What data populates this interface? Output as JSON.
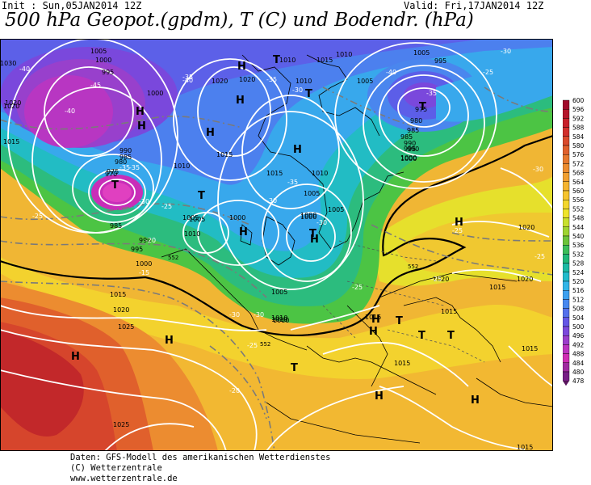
{
  "header": {
    "init": "Init : Sun,05JAN2014 12Z",
    "valid": "Valid: Fri,17JAN2014 12Z",
    "title": "500 hPa Geopot.(gpdm), T (C) und Bodendr. (hPa)"
  },
  "isobars": [
    {
      "v": "1030"
    },
    {
      "v": "1020"
    },
    {
      "v": "1005"
    },
    {
      "v": "1000"
    },
    {
      "v": "995"
    },
    {
      "v": "1000"
    },
    {
      "v": "1020"
    },
    {
      "v": "1010"
    },
    {
      "v": "1015"
    },
    {
      "v": "990"
    },
    {
      "v": "985"
    },
    {
      "v": "980"
    },
    {
      "v": "975"
    },
    {
      "v": "970"
    },
    {
      "v": "985"
    },
    {
      "v": "990"
    },
    {
      "v": "995"
    },
    {
      "v": "1000"
    },
    {
      "v": "1010"
    },
    {
      "v": "1005"
    },
    {
      "v": "1010"
    },
    {
      "v": "1000"
    },
    {
      "v": "1005"
    },
    {
      "v": "1015"
    },
    {
      "v": "1010"
    },
    {
      "v": "1005"
    },
    {
      "v": "1000"
    },
    {
      "v": "1005"
    },
    {
      "v": "1010"
    },
    {
      "v": "1020"
    },
    {
      "v": "1010"
    },
    {
      "v": "1015"
    },
    {
      "v": "1010"
    },
    {
      "v": "1005"
    },
    {
      "v": "1000"
    },
    {
      "v": "995"
    },
    {
      "v": "990"
    },
    {
      "v": "985"
    },
    {
      "v": "980"
    },
    {
      "v": "975"
    },
    {
      "v": "985"
    },
    {
      "v": "990"
    },
    {
      "v": "995"
    },
    {
      "v": "1000"
    },
    {
      "v": "1005"
    },
    {
      "v": "1015"
    },
    {
      "v": "1020"
    },
    {
      "v": "1025"
    },
    {
      "v": "1020"
    },
    {
      "v": "1015"
    },
    {
      "v": "1010"
    },
    {
      "v": "1005"
    },
    {
      "v": "1015"
    },
    {
      "v": "1020"
    },
    {
      "v": "1015"
    },
    {
      "v": "1020"
    },
    {
      "v": "1015"
    },
    {
      "v": "1025"
    },
    {
      "v": "1015"
    },
    {
      "v": "1015"
    },
    {
      "v": "1020"
    },
    {
      "v": "1000"
    },
    {
      "v": "1010"
    },
    {
      "v": "1015"
    }
  ],
  "temps": [
    {
      "v": "-40"
    },
    {
      "v": "-45"
    },
    {
      "v": "-40"
    },
    {
      "v": "-35"
    },
    {
      "v": "-40"
    },
    {
      "v": "-35"
    },
    {
      "v": "-30"
    },
    {
      "v": "-35"
    },
    {
      "v": "-30"
    },
    {
      "v": "-30"
    },
    {
      "v": "-25"
    },
    {
      "v": "-20"
    },
    {
      "v": "-15"
    },
    {
      "v": "-25"
    },
    {
      "v": "-35"
    },
    {
      "v": "-30"
    },
    {
      "v": "-35"
    },
    {
      "v": "-30"
    },
    {
      "v": "-25"
    },
    {
      "v": "-25"
    },
    {
      "v": "-25"
    },
    {
      "v": "-30"
    },
    {
      "v": "-25"
    },
    {
      "v": "-20"
    },
    {
      "v": "-25"
    },
    {
      "v": "-30"
    },
    {
      "v": "-25"
    },
    {
      "v": "-40"
    },
    {
      "v": "-35"
    },
    {
      "v": "-30"
    }
  ],
  "pressure_centers": [
    {
      "t": "H"
    },
    {
      "t": "H"
    },
    {
      "t": "T"
    },
    {
      "t": "H"
    },
    {
      "t": "H"
    },
    {
      "t": "H"
    },
    {
      "t": "T"
    },
    {
      "t": "T"
    },
    {
      "t": "H"
    },
    {
      "t": "T"
    },
    {
      "t": "H"
    },
    {
      "t": "H"
    },
    {
      "t": "T"
    },
    {
      "t": "H"
    },
    {
      "t": "T"
    },
    {
      "t": "T"
    },
    {
      "t": "H"
    },
    {
      "t": "T"
    },
    {
      "t": "T"
    },
    {
      "t": "H"
    },
    {
      "t": "H"
    },
    {
      "t": "H"
    },
    {
      "t": "H"
    },
    {
      "t": "H"
    },
    {
      "t": "T"
    }
  ],
  "geopot_labels": [
    "552",
    "552",
    "552"
  ],
  "colorbar": {
    "values": [
      "600",
      "596",
      "592",
      "588",
      "584",
      "580",
      "576",
      "572",
      "568",
      "564",
      "560",
      "556",
      "552",
      "548",
      "544",
      "540",
      "536",
      "532",
      "528",
      "524",
      "520",
      "516",
      "512",
      "508",
      "504",
      "500",
      "496",
      "492",
      "488",
      "484",
      "480",
      "478"
    ],
    "colors": [
      "#a00a2a",
      "#b5152a",
      "#c8202a",
      "#d2302c",
      "#da4a2c",
      "#e0602c",
      "#e6782e",
      "#ec8c30",
      "#f1a032",
      "#f5b430",
      "#f6c42e",
      "#f3d62c",
      "#eee42c",
      "#c8e02e",
      "#9ed431",
      "#6cc43a",
      "#3cbe5a",
      "#20b878",
      "#1cbaa4",
      "#22bccc",
      "#32b6e8",
      "#3ca0f0",
      "#4888f0",
      "#5470ec",
      "#6456e6",
      "#7c48dc",
      "#9c3ecc",
      "#bc34c0",
      "#d02eb4",
      "#a02aa0",
      "#781e86",
      "#5a145e"
    ]
  },
  "footer": {
    "line1": "Daten: GFS-Modell des amerikanischen Wetterdienstes",
    "line2": "(C) Wetterzentrale",
    "line3": "www.wetterzentrale.de"
  }
}
